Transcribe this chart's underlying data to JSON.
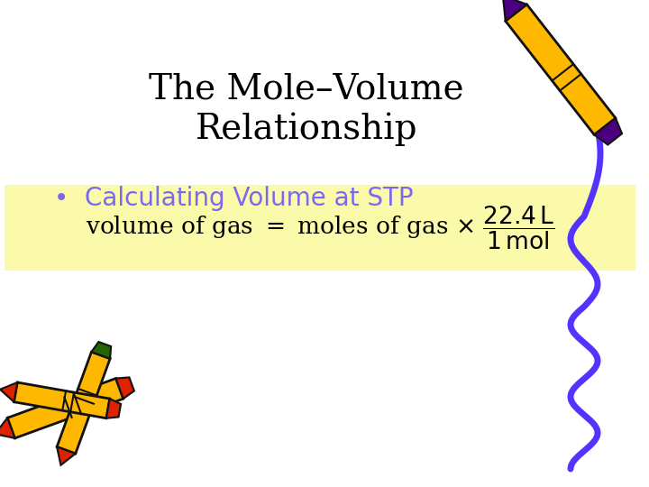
{
  "title_line1": "The Mole–Volume",
  "title_line2": "Relationship",
  "title_color": "#000000",
  "title_fontsize": 28,
  "bullet_text": "•  Calculating Volume at STP",
  "bullet_color": "#7B68EE",
  "bullet_fontsize": 20,
  "formula_color": "#000000",
  "formula_fontsize": 19,
  "formula_bg_color": "#FAFAAA",
  "background_color": "#FFFFFF",
  "wavy_color": "#5533FF",
  "crayon_yellow": "#FFB800",
  "crayon_purple": "#4B0082",
  "crayon_red": "#DD2200",
  "crayon_green": "#226600",
  "crayon_outline": "#111111",
  "fig_width": 7.2,
  "fig_height": 5.4
}
